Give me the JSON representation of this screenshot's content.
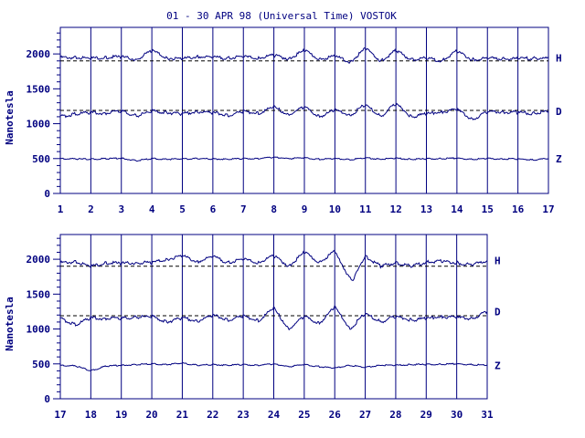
{
  "chart_data": {
    "type": "line",
    "title": "01 - 30 APR 98 (Universal Time) VOSTOK",
    "ylabel": "Nanotesla",
    "ylim": [
      0,
      2400
    ],
    "yticks": [
      0,
      500,
      1000,
      1500,
      2000
    ],
    "baselines": [
      1900,
      1190
    ],
    "grid": true,
    "panels": [
      {
        "xlim": [
          1,
          17
        ],
        "xticks": [
          1,
          2,
          3,
          4,
          5,
          6,
          7,
          8,
          9,
          10,
          11,
          12,
          13,
          14,
          15,
          16,
          17
        ],
        "series": [
          {
            "name": "H",
            "x": [
              1,
              1.5,
              2,
              2.5,
              3,
              3.5,
              4,
              4.5,
              5,
              5.5,
              6,
              6.5,
              7,
              7.5,
              8,
              8.5,
              9,
              9.5,
              10,
              10.5,
              11,
              11.5,
              12,
              12.5,
              13,
              13.5,
              14,
              14.5,
              15,
              15.5,
              16,
              16.5,
              17
            ],
            "y": [
              1950,
              1945,
              1940,
              1950,
              1960,
              1920,
              2050,
              1940,
              1930,
              1960,
              1950,
              1940,
              1960,
              1940,
              1980,
              1930,
              2050,
              1920,
              1970,
              1880,
              2080,
              1900,
              2050,
              1920,
              1940,
              1900,
              2040,
              1920,
              1940,
              1930,
              1930,
              1940,
              1940
            ]
          },
          {
            "name": "D",
            "x": [
              1,
              1.5,
              2,
              2.5,
              3,
              3.5,
              4,
              4.5,
              5,
              5.5,
              6,
              6.5,
              7,
              7.5,
              8,
              8.5,
              9,
              9.5,
              10,
              10.5,
              11,
              11.5,
              12,
              12.5,
              13,
              13.5,
              14,
              14.5,
              15,
              15.5,
              16,
              16.5,
              17
            ],
            "y": [
              1100,
              1140,
              1160,
              1150,
              1180,
              1110,
              1180,
              1160,
              1140,
              1170,
              1160,
              1120,
              1170,
              1150,
              1240,
              1130,
              1240,
              1100,
              1200,
              1120,
              1280,
              1100,
              1290,
              1100,
              1140,
              1170,
              1200,
              1060,
              1170,
              1170,
              1160,
              1150,
              1180
            ]
          },
          {
            "name": "Z",
            "x": [
              1,
              1.5,
              2,
              2.5,
              3,
              3.5,
              4,
              4.5,
              5,
              5.5,
              6,
              6.5,
              7,
              7.5,
              8,
              8.5,
              9,
              9.5,
              10,
              10.5,
              11,
              11.5,
              12,
              12.5,
              13,
              13.5,
              14,
              14.5,
              15,
              15.5,
              16,
              16.5,
              17
            ],
            "y": [
              500,
              495,
              490,
              500,
              505,
              470,
              500,
              490,
              495,
              500,
              495,
              490,
              500,
              500,
              520,
              500,
              510,
              490,
              500,
              485,
              510,
              490,
              505,
              490,
              495,
              500,
              505,
              490,
              500,
              495,
              495,
              480,
              500
            ]
          }
        ]
      },
      {
        "xlim": [
          17,
          31
        ],
        "xticks": [
          17,
          18,
          19,
          20,
          21,
          22,
          23,
          24,
          25,
          26,
          27,
          28,
          29,
          30,
          31
        ],
        "series": [
          {
            "name": "H",
            "x": [
              17,
              17.5,
              18,
              18.5,
              19,
              19.5,
              20,
              20.5,
              21,
              21.5,
              22,
              22.5,
              23,
              23.5,
              24,
              24.5,
              25,
              25.5,
              26,
              26.3,
              26.6,
              27,
              27.5,
              28,
              28.5,
              29,
              29.5,
              30,
              30.5,
              31
            ],
            "y": [
              1950,
              1960,
              1900,
              1950,
              1940,
              1950,
              1950,
              2000,
              2050,
              1960,
              2040,
              1950,
              2000,
              1950,
              2050,
              1900,
              2100,
              1950,
              2120,
              1850,
              1700,
              2050,
              1900,
              1950,
              1900,
              1960,
              1970,
              1950,
              1920,
              1980
            ]
          },
          {
            "name": "D",
            "x": [
              17,
              17.5,
              18,
              18.5,
              19,
              19.5,
              20,
              20.5,
              21,
              21.5,
              22,
              22.5,
              23,
              23.5,
              24,
              24.5,
              25,
              25.5,
              26,
              26.5,
              27,
              27.5,
              28,
              28.5,
              29,
              29.5,
              30,
              30.5,
              31
            ],
            "y": [
              1150,
              1060,
              1160,
              1150,
              1150,
              1170,
              1180,
              1100,
              1160,
              1110,
              1200,
              1130,
              1180,
              1120,
              1300,
              1000,
              1180,
              1080,
              1320,
              1000,
              1230,
              1100,
              1180,
              1130,
              1150,
              1180,
              1160,
              1150,
              1250
            ]
          },
          {
            "name": "Z",
            "x": [
              17,
              17.5,
              18,
              18.5,
              19,
              19.5,
              20,
              20.5,
              21,
              21.5,
              22,
              22.5,
              23,
              23.5,
              24,
              24.5,
              25,
              25.5,
              26,
              26.5,
              27,
              27.5,
              28,
              28.5,
              29,
              29.5,
              30,
              30.5,
              31
            ],
            "y": [
              480,
              470,
              400,
              470,
              480,
              490,
              500,
              490,
              510,
              480,
              490,
              480,
              490,
              480,
              500,
              460,
              490,
              460,
              440,
              480,
              450,
              480,
              480,
              490,
              490,
              495,
              500,
              490,
              480
            ]
          }
        ]
      }
    ]
  }
}
